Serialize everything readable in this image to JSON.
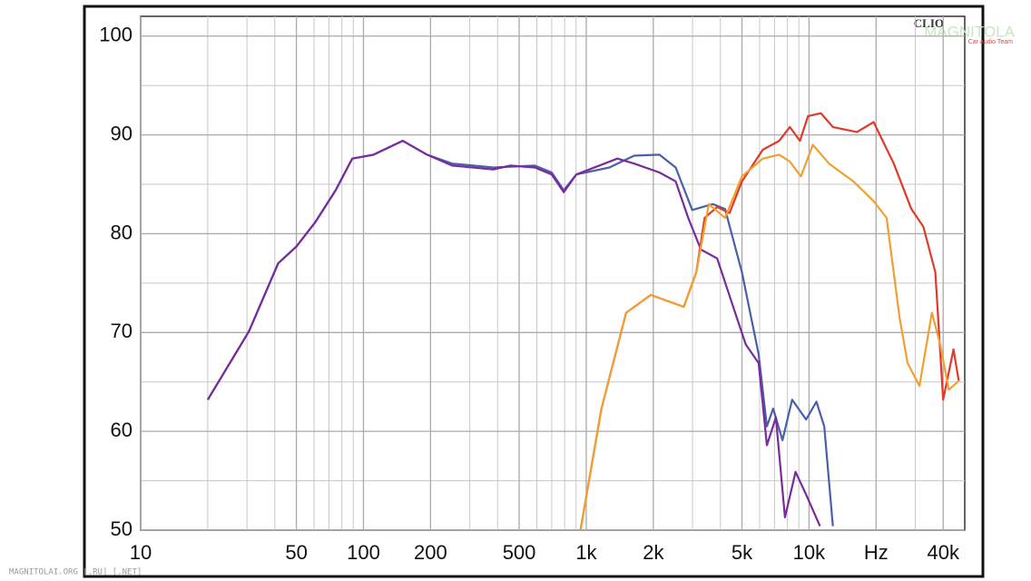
{
  "chart_data": {
    "type": "line",
    "xlim": [
      10,
      50000
    ],
    "ylim": [
      50,
      102
    ],
    "xscale": "log",
    "grid": true,
    "xticks": [
      10,
      50,
      100,
      200,
      500,
      {
        "value": 1000,
        "label": "1k"
      },
      {
        "value": 2000,
        "label": "2k"
      },
      {
        "value": 5000,
        "label": "5k"
      },
      {
        "value": 10000,
        "label": "10k"
      },
      {
        "value": 20000,
        "label": "Hz"
      },
      {
        "value": 40000,
        "label": "40k"
      }
    ],
    "xminorticks": [
      20,
      30,
      40,
      60,
      70,
      80,
      90,
      300,
      400,
      600,
      700,
      800,
      900,
      3000,
      4000,
      6000,
      7000,
      8000,
      9000,
      30000
    ],
    "yticks": [
      50,
      60,
      70,
      80,
      90,
      100
    ],
    "yminorticks": [
      55,
      65,
      75,
      85,
      95
    ],
    "series": [
      {
        "color": "#4a5fa8",
        "x": [
          20,
          30.6,
          41.4,
          50,
          60.9,
          75,
          89,
          111,
          150,
          193,
          250,
          383,
          588,
          700,
          793,
          902,
          1270,
          1640,
          2130,
          2520,
          2990,
          3700,
          4200,
          5000,
          5940,
          6470,
          6900,
          7600,
          8400,
          9700,
          10800,
          11700,
          12800
        ],
        "values": [
          63.2,
          70.1,
          77,
          78.7,
          81.2,
          84.4,
          87.6,
          88,
          89.4,
          88,
          87.1,
          86.7,
          86.9,
          86.2,
          84.4,
          86,
          86.7,
          87.9,
          88,
          86.7,
          82.4,
          83,
          82.5,
          76.1,
          67.8,
          60.5,
          62.3,
          59.1,
          63.2,
          61.2,
          63,
          60.5,
          50.4
        ]
      },
      {
        "color": "#7a2a9a",
        "x": [
          20,
          30.6,
          41.4,
          50,
          60.9,
          75,
          89,
          111,
          150,
          193,
          250,
          383,
          455,
          588,
          700,
          793,
          902,
          1380,
          1640,
          2130,
          2520,
          2870,
          3270,
          3870,
          4600,
          5200,
          5940,
          6470,
          7100,
          7800,
          8700,
          9700,
          11200
        ],
        "values": [
          63.2,
          70.1,
          77,
          78.7,
          81.2,
          84.4,
          87.6,
          88,
          89.4,
          88,
          86.9,
          86.5,
          86.9,
          86.7,
          86,
          84.2,
          86,
          87.6,
          87.1,
          86.2,
          85.3,
          81.6,
          78.4,
          77.5,
          72.4,
          68.8,
          66.9,
          58.6,
          61.4,
          51.3,
          55.9,
          53.6,
          50.4
        ]
      },
      {
        "color": "#e03a2a",
        "x": [
          942,
          1170,
          1510,
          1950,
          2740,
          3120,
          3400,
          3870,
          4400,
          5000,
          6200,
          7350,
          8200,
          9100,
          9900,
          11300,
          12800,
          16400,
          19500,
          24000,
          28800,
          32600,
          36900,
          40000,
          44500,
          47000
        ],
        "values": [
          50,
          62.3,
          72,
          73.8,
          72.6,
          76.1,
          81.6,
          82.7,
          82.1,
          85.3,
          88.5,
          89.4,
          90.8,
          89.4,
          91.9,
          92.2,
          90.8,
          90.3,
          91.3,
          87.1,
          82.5,
          80.7,
          76.1,
          63.2,
          68.3,
          65.1
        ]
      },
      {
        "color": "#f0a030",
        "x": [
          942,
          1170,
          1510,
          1950,
          2740,
          3120,
          3550,
          4200,
          5000,
          6200,
          7350,
          8200,
          9200,
          10400,
          12300,
          15800,
          19500,
          22300,
          25500,
          27700,
          31300,
          35600,
          38800,
          42400,
          47000
        ],
        "values": [
          50,
          62.3,
          72,
          73.8,
          72.6,
          76.1,
          83,
          81.6,
          85.8,
          87.6,
          88,
          87.3,
          85.8,
          89,
          87.1,
          85.3,
          83.3,
          81.6,
          71.5,
          66.9,
          64.6,
          72,
          68.8,
          64.2,
          65.1
        ]
      }
    ]
  },
  "logo": {
    "brand": "CLIO",
    "watermark": "MAGNITOLA",
    "team": "Car audio Team"
  },
  "footer": "MAGNITOLAI.ORG [.RU] [.NET]"
}
